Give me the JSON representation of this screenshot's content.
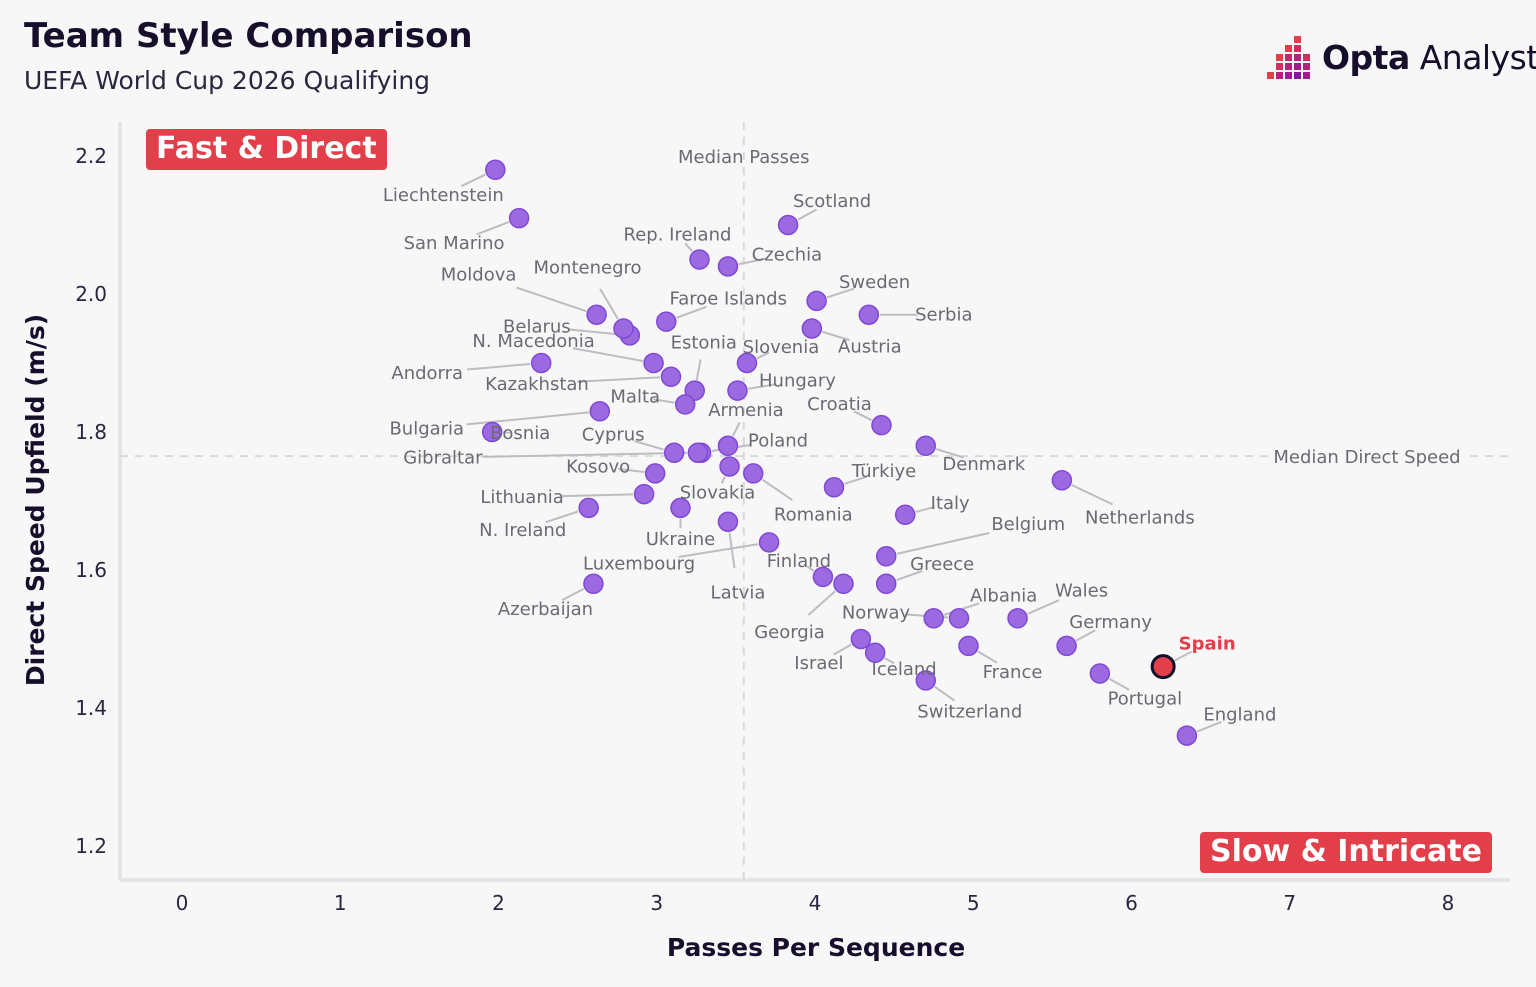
{
  "header": {
    "title": "Team Style Comparison",
    "subtitle": "UEFA World Cup 2026 Qualifying"
  },
  "brand": {
    "name_bold": "Opta",
    "name_light": " Analyst",
    "accent_color": "#e33f4a",
    "secondary_color": "#a11a8e"
  },
  "quadrants": {
    "top_left": "Fast & Direct",
    "bottom_right": "Slow & Intricate"
  },
  "chart_data": {
    "type": "scatter",
    "xlabel": "Passes Per Sequence",
    "ylabel": "Direct Speed Upfield (m/s)",
    "xlim": [
      -0.4,
      8.4
    ],
    "ylim": [
      1.135,
      2.245
    ],
    "x_ticks": [
      0,
      1,
      2,
      3,
      4,
      5,
      6,
      7,
      8
    ],
    "y_ticks": [
      1.2,
      1.4,
      1.6,
      1.8,
      2.0,
      2.2
    ],
    "y_tick_labels": [
      "1.2",
      "1.4",
      "1.6",
      "1.8",
      "2.0",
      "2.2"
    ],
    "grid": false,
    "point_color": "#9c6ae0",
    "highlight_color": "#e33f4a",
    "reference_lines": {
      "median_passes": {
        "label": "Median Passes",
        "x": 3.55
      },
      "median_direct_speed": {
        "label": "Median Direct Speed",
        "y": 1.765
      }
    },
    "points": [
      {
        "team": "Liechtenstein",
        "x": 1.98,
        "y": 2.18
      },
      {
        "team": "San Marino",
        "x": 2.13,
        "y": 2.11
      },
      {
        "team": "Moldova",
        "x": 2.62,
        "y": 1.97
      },
      {
        "team": "Belarus",
        "x": 2.83,
        "y": 1.94
      },
      {
        "team": "Montenegro",
        "x": 2.79,
        "y": 1.95
      },
      {
        "team": "Faroe Islands",
        "x": 3.06,
        "y": 1.96
      },
      {
        "team": "Rep. Ireland",
        "x": 3.27,
        "y": 2.05
      },
      {
        "team": "Czechia",
        "x": 3.45,
        "y": 2.04
      },
      {
        "team": "Scotland",
        "x": 3.83,
        "y": 2.1
      },
      {
        "team": "Sweden",
        "x": 4.01,
        "y": 1.99
      },
      {
        "team": "Serbia",
        "x": 4.34,
        "y": 1.97
      },
      {
        "team": "Austria",
        "x": 3.98,
        "y": 1.95
      },
      {
        "team": "N. Macedonia",
        "x": 2.98,
        "y": 1.9
      },
      {
        "team": "Estonia",
        "x": 3.24,
        "y": 1.86
      },
      {
        "team": "Slovenia",
        "x": 3.57,
        "y": 1.9
      },
      {
        "team": "Andorra",
        "x": 2.27,
        "y": 1.9
      },
      {
        "team": "Kazakhstan",
        "x": 3.09,
        "y": 1.88
      },
      {
        "team": "Malta",
        "x": 3.18,
        "y": 1.84
      },
      {
        "team": "Hungary",
        "x": 3.51,
        "y": 1.86
      },
      {
        "team": "Bulgaria",
        "x": 2.64,
        "y": 1.83
      },
      {
        "team": "Armenia",
        "x": 3.45,
        "y": 1.78
      },
      {
        "team": "Croatia",
        "x": 4.42,
        "y": 1.81
      },
      {
        "team": "Bosnia",
        "x": 1.96,
        "y": 1.8
      },
      {
        "team": "Cyprus",
        "x": 3.11,
        "y": 1.77
      },
      {
        "team": "Poland",
        "x": 3.28,
        "y": 1.77
      },
      {
        "team": "Denmark",
        "x": 4.7,
        "y": 1.78
      },
      {
        "team": "Gibraltar",
        "x": 3.26,
        "y": 1.77
      },
      {
        "team": "Kosovo",
        "x": 2.99,
        "y": 1.74
      },
      {
        "team": "Slovakia",
        "x": 3.46,
        "y": 1.75
      },
      {
        "team": "Romania",
        "x": 3.61,
        "y": 1.74
      },
      {
        "team": "Türkiye",
        "x": 4.12,
        "y": 1.72
      },
      {
        "team": "Netherlands",
        "x": 5.56,
        "y": 1.73
      },
      {
        "team": "Lithuania",
        "x": 2.92,
        "y": 1.71
      },
      {
        "team": "N. Ireland",
        "x": 2.57,
        "y": 1.69
      },
      {
        "team": "Ukraine",
        "x": 3.15,
        "y": 1.69
      },
      {
        "team": "Italy",
        "x": 4.57,
        "y": 1.68
      },
      {
        "team": "Belgium",
        "x": 4.45,
        "y": 1.62
      },
      {
        "team": "Latvia",
        "x": 3.45,
        "y": 1.67
      },
      {
        "team": "Luxembourg",
        "x": 3.71,
        "y": 1.64
      },
      {
        "team": "Finland",
        "x": 4.05,
        "y": 1.59
      },
      {
        "team": "Greece",
        "x": 4.45,
        "y": 1.58
      },
      {
        "team": "Azerbaijan",
        "x": 2.6,
        "y": 1.58
      },
      {
        "team": "Georgia",
        "x": 4.18,
        "y": 1.58
      },
      {
        "team": "Albania",
        "x": 4.75,
        "y": 1.53
      },
      {
        "team": "Norway",
        "x": 4.91,
        "y": 1.53
      },
      {
        "team": "Wales",
        "x": 5.28,
        "y": 1.53
      },
      {
        "team": "Germany",
        "x": 5.59,
        "y": 1.49
      },
      {
        "team": "Israel",
        "x": 4.29,
        "y": 1.5
      },
      {
        "team": "Iceland",
        "x": 4.38,
        "y": 1.48
      },
      {
        "team": "France",
        "x": 4.97,
        "y": 1.49
      },
      {
        "team": "Spain",
        "x": 6.2,
        "y": 1.46,
        "highlight": true
      },
      {
        "team": "Portugal",
        "x": 5.8,
        "y": 1.45
      },
      {
        "team": "Switzerland",
        "x": 4.7,
        "y": 1.44
      },
      {
        "team": "England",
        "x": 6.35,
        "y": 1.36
      }
    ]
  }
}
